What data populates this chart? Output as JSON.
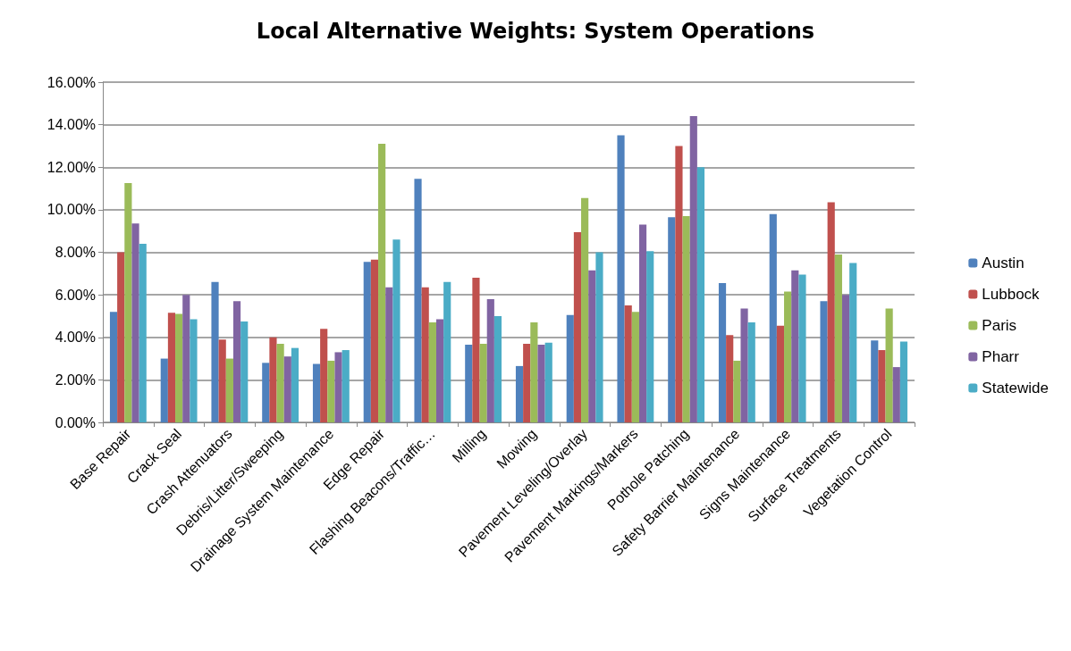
{
  "chart_data": {
    "type": "bar",
    "title": "Local Alternative Weights: System Operations",
    "categories": [
      "Base Repair",
      "Crack Seal",
      "Crash Attenuators",
      "Debris/Litter/Sweeping",
      "Drainage System Maintenance",
      "Edge Repair",
      "Flashing Beacons/Traffic…",
      "Milling",
      "Mowing",
      "Pavement Leveling/Overlay",
      "Pavement Markings/Markers",
      "Pothole Patching",
      "Safety Barrier Maintenance",
      "Signs Maintenance",
      "Surface Treatments",
      "Vegetation Control"
    ],
    "series": [
      {
        "name": "Austin",
        "color": "#4f81bd",
        "values": [
          5.2,
          3.0,
          6.6,
          2.8,
          2.75,
          7.55,
          11.45,
          3.65,
          2.65,
          5.05,
          13.5,
          9.65,
          6.55,
          9.8,
          5.7,
          3.85
        ]
      },
      {
        "name": "Lubbock",
        "color": "#c0504d",
        "values": [
          8.0,
          5.15,
          3.9,
          4.0,
          4.4,
          7.65,
          6.35,
          6.8,
          3.7,
          8.95,
          5.5,
          13.0,
          4.1,
          4.55,
          10.35,
          3.4
        ]
      },
      {
        "name": "Paris",
        "color": "#9bbb59",
        "values": [
          11.25,
          5.1,
          3.0,
          3.7,
          2.9,
          13.1,
          4.7,
          3.7,
          4.7,
          10.55,
          5.2,
          9.7,
          2.9,
          6.15,
          7.9,
          5.35
        ]
      },
      {
        "name": "Pharr",
        "color": "#8064a2",
        "values": [
          9.35,
          6.0,
          5.7,
          3.1,
          3.3,
          6.35,
          4.85,
          5.8,
          3.65,
          7.15,
          9.3,
          14.4,
          5.35,
          7.15,
          6.0,
          2.6
        ]
      },
      {
        "name": "Statewide",
        "color": "#4bacc6",
        "values": [
          8.4,
          4.85,
          4.75,
          3.5,
          3.4,
          8.6,
          6.6,
          5.0,
          3.75,
          8.0,
          8.05,
          12.0,
          4.7,
          6.95,
          7.5,
          3.8
        ]
      }
    ],
    "ylim": [
      0,
      16
    ],
    "yticks": [
      {
        "value": 0,
        "label": "0.00%"
      },
      {
        "value": 2,
        "label": "2.00%"
      },
      {
        "value": 4,
        "label": "4.00%"
      },
      {
        "value": 6,
        "label": "6.00%"
      },
      {
        "value": 8,
        "label": "8.00%"
      },
      {
        "value": 10,
        "label": "10.00%"
      },
      {
        "value": 12,
        "label": "12.00%"
      },
      {
        "value": 14,
        "label": "14.00%"
      },
      {
        "value": 16,
        "label": "16.00%"
      }
    ],
    "grid": "y",
    "legend": "right"
  }
}
